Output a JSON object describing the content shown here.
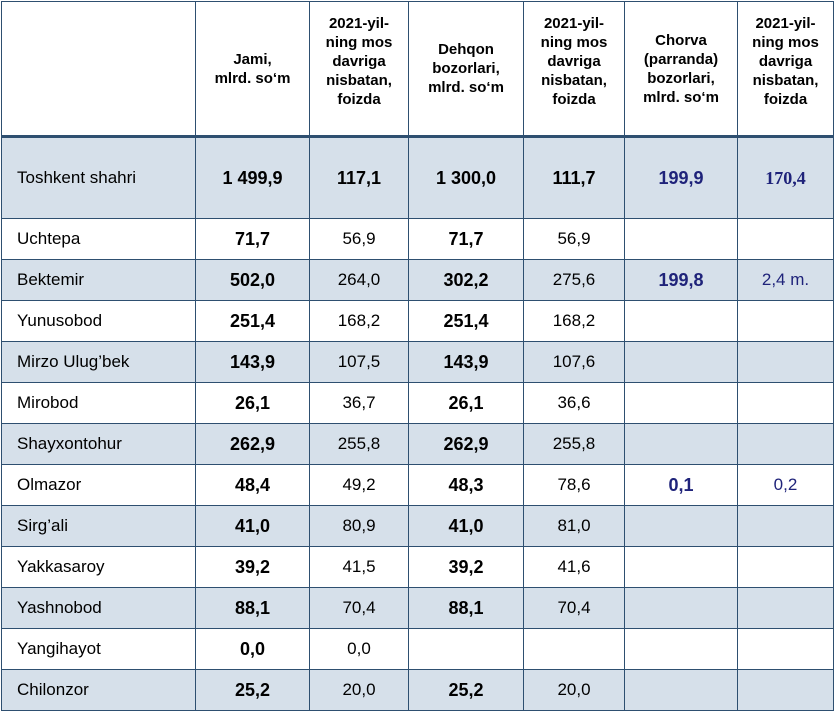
{
  "headers": [
    "",
    "Jami,\nmlrd. so‘m",
    "2021-yil-\nning mos\ndavriga\nnisbatan,\nfoizda",
    "Dehqon\nbozorlari,\nmlrd. so‘m",
    "2021-yil-\nning mos\ndavriga\nnisbatan,\nfoizda",
    "Chorva\n(parranda)\nbozorlari,\nmlrd. so‘m",
    "2021-yil-\nning mos\ndavriga\nnisbatan,\nfoizda"
  ],
  "rows": [
    [
      "Toshkent shahri",
      "1 499,9",
      "117,1",
      "1 300,0",
      "111,7",
      "199,9",
      "170,4"
    ],
    [
      "Uchtepa",
      "71,7",
      "56,9",
      "71,7",
      "56,9",
      "",
      ""
    ],
    [
      "Bektemir",
      "502,0",
      "264,0",
      "302,2",
      "275,6",
      "199,8",
      "2,4 m."
    ],
    [
      "Yunusobod",
      "251,4",
      "168,2",
      "251,4",
      "168,2",
      "",
      ""
    ],
    [
      "Mirzo Ulug’bek",
      "143,9",
      "107,5",
      "143,9",
      "107,6",
      "",
      ""
    ],
    [
      "Mirobod",
      "26,1",
      "36,7",
      "26,1",
      "36,6",
      "",
      ""
    ],
    [
      "Shayxontohur",
      "262,9",
      "255,8",
      "262,9",
      "255,8",
      "",
      ""
    ],
    [
      "Olmazor",
      "48,4",
      "49,2",
      "48,3",
      "78,6",
      "0,1",
      "0,2"
    ],
    [
      "Sirg’ali",
      "41,0",
      "80,9",
      "41,0",
      "81,0",
      "",
      ""
    ],
    [
      "Yakkasaroy",
      "39,2",
      "41,5",
      "39,2",
      "41,6",
      "",
      ""
    ],
    [
      "Yashnobod",
      "88,1",
      "70,4",
      "88,1",
      "70,4",
      "",
      ""
    ],
    [
      "Yangihayot",
      "0,0",
      "0,0",
      "",
      "",
      "",
      ""
    ],
    [
      "Chilonzor",
      "25,2",
      "20,0",
      "25,2",
      "20,0",
      "",
      ""
    ]
  ],
  "colors": {
    "border": "#2e4f70",
    "shade": "#d6e0ea",
    "accent": "#1f237a"
  }
}
